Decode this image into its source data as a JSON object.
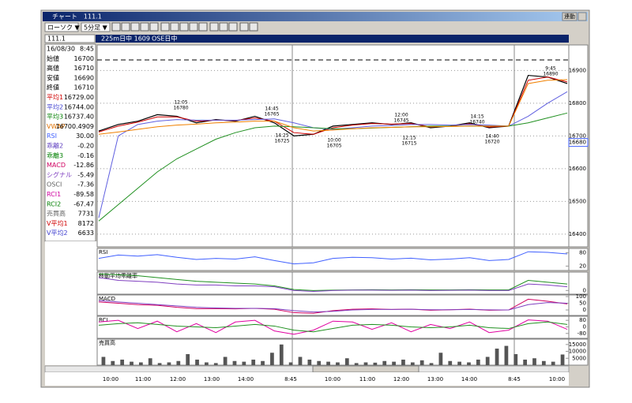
{
  "window": {
    "title": "チャート　111.1",
    "link_button": "連動"
  },
  "toolbar": {
    "chart_type": "ローソク ▼",
    "interval": "5分足 ▼"
  },
  "header": {
    "symbol": "111.1",
    "contract": "225m日中 1609",
    "session": "OSE日中"
  },
  "info": [
    {
      "label": "16/08/30",
      "value": "8:45",
      "color": "#000000"
    },
    {
      "label": "始値",
      "value": "16700",
      "color": "#000000"
    },
    {
      "label": "高値",
      "value": "16710",
      "color": "#000000"
    },
    {
      "label": "安値",
      "value": "16690",
      "color": "#000000"
    },
    {
      "label": "終値",
      "value": "16710",
      "color": "#000000"
    },
    {
      "label": "平均1",
      "value": "16729.00",
      "color": "#d00000"
    },
    {
      "label": "平均2",
      "value": "16744.00",
      "color": "#4040d0"
    },
    {
      "label": "平均3",
      "value": "16737.40",
      "color": "#008000"
    },
    {
      "label": "VWAP",
      "value": "16700.4909",
      "color": "#e07000"
    },
    {
      "label": "RSI",
      "value": "30.00",
      "color": "#4060ff"
    },
    {
      "label": "乖離2",
      "value": "-0.20",
      "color": "#6040c0"
    },
    {
      "label": "乖離3",
      "value": "-0.16",
      "color": "#008000"
    },
    {
      "label": "MACD",
      "value": "-12.86",
      "color": "#d00060"
    },
    {
      "label": "シグナル",
      "value": "-5.49",
      "color": "#8040c0"
    },
    {
      "label": "OSCI",
      "value": "-7.36",
      "color": "#606060"
    },
    {
      "label": "RCI1",
      "value": "-89.58",
      "color": "#d000a0"
    },
    {
      "label": "RCI2",
      "value": "-67.47",
      "color": "#008000"
    },
    {
      "label": "売買高",
      "value": "7731",
      "color": "#606060"
    },
    {
      "label": "V平均1",
      "value": "8172",
      "color": "#d00000"
    },
    {
      "label": "V平均2",
      "value": "6633",
      "color": "#4040d0"
    }
  ],
  "time_axis": [
    "10:00",
    "11:00",
    "12:00",
    "13:00",
    "14:00",
    "8:45",
    "10:00",
    "11:00",
    "12:00",
    "13:00",
    "14:00",
    "8:45",
    "10:00"
  ],
  "chart_data": [
    {
      "type": "line",
      "ylim": [
        16361,
        16978
      ],
      "yticks": [
        16900,
        16800,
        16700,
        16600,
        16500,
        16400
      ],
      "grid": true,
      "last_price": 16680,
      "annotations": [
        {
          "time": "12:05",
          "price": 16780
        },
        {
          "time": "14:45",
          "price": 16765
        },
        {
          "time": "14:25",
          "price": 16725
        },
        {
          "time": "10:00",
          "price": 16705
        },
        {
          "time": "12:00",
          "price": 16745
        },
        {
          "time": "12:15",
          "price": 16715
        },
        {
          "time": "14:15",
          "price": 16740
        },
        {
          "time": "14:40",
          "price": 16720
        },
        {
          "time": "9:45",
          "price": 16890
        }
      ],
      "series": [
        {
          "color": "#000000",
          "values": [
            16715,
            16735,
            16745,
            16765,
            16760,
            16740,
            16750,
            16745,
            16760,
            16740,
            16700,
            16705,
            16730,
            16735,
            16740,
            16735,
            16740,
            16725,
            16730,
            16740,
            16725,
            16730,
            16885,
            16880,
            16860
          ]
        },
        {
          "color": "#d00000",
          "values": [
            16712,
            16730,
            16742,
            16758,
            16758,
            16745,
            16748,
            16747,
            16755,
            16745,
            16710,
            16705,
            16725,
            16733,
            16738,
            16736,
            16738,
            16728,
            16730,
            16737,
            16727,
            16730,
            16870,
            16880,
            16865
          ]
        },
        {
          "color": "#6060e0",
          "values": [
            16450,
            16700,
            16735,
            16745,
            16750,
            16748,
            16748,
            16748,
            16750,
            16752,
            16740,
            16725,
            16720,
            16725,
            16730,
            16732,
            16735,
            16735,
            16733,
            16735,
            16733,
            16730,
            16760,
            16800,
            16835
          ]
        },
        {
          "color": "#209020",
          "values": [
            16440,
            16490,
            16540,
            16590,
            16630,
            16660,
            16690,
            16710,
            16725,
            16730,
            16728,
            16725,
            16722,
            16722,
            16724,
            16726,
            16728,
            16730,
            16730,
            16730,
            16730,
            16730,
            16740,
            16755,
            16770
          ]
        },
        {
          "color": "#f08000",
          "values": [
            16705,
            16712,
            16720,
            16728,
            16733,
            16736,
            16740,
            16742,
            16745,
            16745,
            16725,
            16715,
            16718,
            16722,
            16725,
            16726,
            16728,
            16728,
            16729,
            16730,
            16730,
            16730,
            16860,
            16870,
            16872
          ]
        }
      ]
    },
    {
      "type": "line",
      "title": "RSI",
      "ylim": [
        0,
        100
      ],
      "yticks": [
        80,
        20
      ],
      "series": [
        {
          "color": "#4060ff",
          "values": [
            55,
            70,
            65,
            72,
            60,
            50,
            55,
            52,
            62,
            45,
            30,
            35,
            55,
            60,
            58,
            52,
            56,
            48,
            52,
            58,
            45,
            50,
            85,
            82,
            75
          ]
        }
      ]
    },
    {
      "type": "line",
      "title": "移動平均乖離率",
      "ylim": [
        -0.2,
        1.0
      ],
      "yticks": [
        0
      ],
      "series": [
        {
          "color": "#209020",
          "values": [
            0.9,
            0.85,
            0.8,
            0.7,
            0.6,
            0.5,
            0.45,
            0.4,
            0.35,
            0.25,
            0.05,
            0.0,
            0.02,
            0.03,
            0.04,
            0.03,
            0.04,
            0.03,
            0.03,
            0.04,
            0.03,
            0.03,
            0.55,
            0.45,
            0.35
          ]
        },
        {
          "color": "#8040c0",
          "values": [
            0.7,
            0.55,
            0.5,
            0.45,
            0.35,
            0.3,
            0.3,
            0.25,
            0.25,
            0.2,
            0.0,
            -0.05,
            0.0,
            0.02,
            0.02,
            0.01,
            0.02,
            0.0,
            0.01,
            0.02,
            0.0,
            0.0,
            0.35,
            0.3,
            0.2
          ]
        }
      ]
    },
    {
      "type": "line",
      "title": "MACD",
      "ylim": [
        -41,
        112
      ],
      "yticks": [
        100,
        50,
        0
      ],
      "series": [
        {
          "color": "#d00060",
          "values": [
            60,
            50,
            40,
            35,
            20,
            10,
            10,
            8,
            12,
            5,
            -20,
            -25,
            -5,
            5,
            8,
            4,
            6,
            -2,
            2,
            6,
            -2,
            0,
            80,
            65,
            45
          ]
        },
        {
          "color": "#8040c0",
          "values": [
            70,
            60,
            50,
            40,
            30,
            20,
            15,
            12,
            12,
            10,
            -5,
            -15,
            -10,
            0,
            4,
            4,
            5,
            2,
            2,
            4,
            1,
            0,
            40,
            55,
            50
          ]
        }
      ]
    },
    {
      "type": "line",
      "title": "RCI",
      "ylim": [
        -140,
        130
      ],
      "yticks": [
        80,
        0,
        -80
      ],
      "series": [
        {
          "color": "#e000a0",
          "values": [
            60,
            80,
            -20,
            70,
            -60,
            40,
            -70,
            60,
            80,
            -50,
            -90,
            -40,
            70,
            60,
            -30,
            50,
            -60,
            30,
            -20,
            60,
            -70,
            -40,
            85,
            70,
            -30
          ]
        },
        {
          "color": "#209020",
          "values": [
            20,
            40,
            50,
            30,
            10,
            0,
            -10,
            10,
            30,
            10,
            -40,
            -60,
            -20,
            20,
            30,
            20,
            0,
            -10,
            0,
            20,
            -10,
            -20,
            40,
            60,
            30
          ]
        }
      ]
    },
    {
      "type": "bar",
      "title": "売買高",
      "ylim": [
        0,
        18900
      ],
      "yticks": [
        15000,
        10000,
        5000
      ],
      "color": "#555555",
      "values": [
        6000,
        3000,
        4000,
        2500,
        2000,
        5000,
        1500,
        2000,
        3000,
        8000,
        4000,
        2000,
        1500,
        6000,
        3000,
        2500,
        4000,
        3000,
        9000,
        15000,
        2000,
        6000,
        4000,
        3000,
        2500,
        2000,
        5000,
        1500,
        2000,
        1800,
        3000,
        2500,
        4000,
        2000,
        3500,
        1500,
        9000,
        3000,
        2500,
        2000,
        4000,
        6000,
        12000,
        14000,
        8000,
        4000,
        5000,
        3000,
        2500,
        7731
      ]
    }
  ]
}
